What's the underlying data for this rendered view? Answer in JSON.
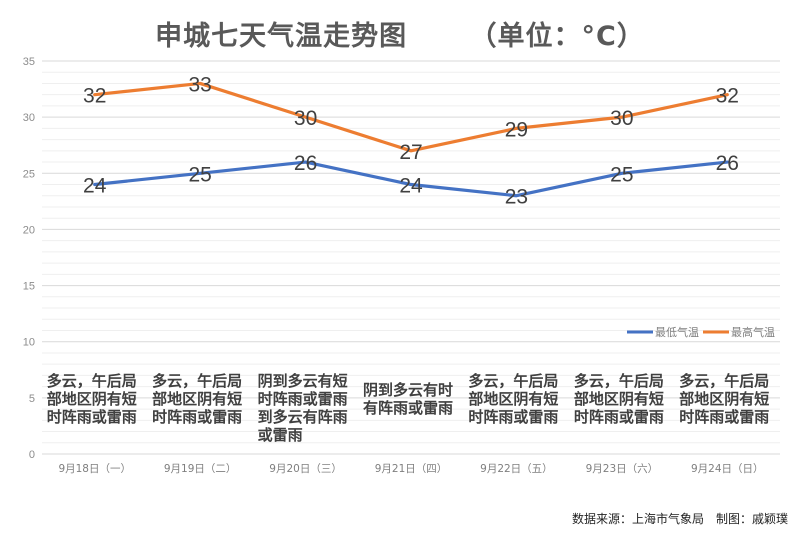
{
  "chart_data": {
    "type": "line",
    "title": "申城七天气温走势图",
    "unit_label": "（单位：°C）",
    "categories": [
      "9月18日（一）",
      "9月19日（二）",
      "9月20日（三）",
      "9月21日（四）",
      "9月22日（五）",
      "9月23日（六）",
      "9月24日（日）"
    ],
    "series": [
      {
        "name": "最低气温",
        "color": "#4472C4",
        "values": [
          24,
          25,
          26,
          24,
          23,
          25,
          26
        ]
      },
      {
        "name": "最高气温",
        "color": "#ED7D31",
        "values": [
          32,
          33,
          30,
          27,
          29,
          30,
          32
        ]
      }
    ],
    "yticks": [
      "0",
      "5",
      "10",
      "15",
      "20",
      "25",
      "30",
      "35"
    ],
    "ylim": [
      0,
      35
    ],
    "major_step": 5,
    "minor_step": 1,
    "grid": true,
    "legend_position": "right",
    "data_labels": true,
    "weather": [
      [
        "多云，午后局",
        "部地区阴有短",
        "时阵雨或雷雨"
      ],
      [
        "多云，午后局",
        "部地区阴有短",
        "时阵雨或雷雨"
      ],
      [
        "阴到多云有短",
        "时阵雨或雷雨",
        "到多云有阵雨",
        "或雷雨"
      ],
      [
        "阴到多云有时",
        "有阵雨或雷雨"
      ],
      [
        "多云，午后局",
        "部地区阴有短",
        "时阵雨或雷雨"
      ],
      [
        "多云，午后局",
        "部地区阴有短",
        "时阵雨或雷雨"
      ],
      [
        "多云，午后局",
        "部地区阴有短",
        "时阵雨或雷雨"
      ]
    ]
  },
  "footer": {
    "source": "数据来源：上海市气象局　制图：戚颖璞"
  }
}
